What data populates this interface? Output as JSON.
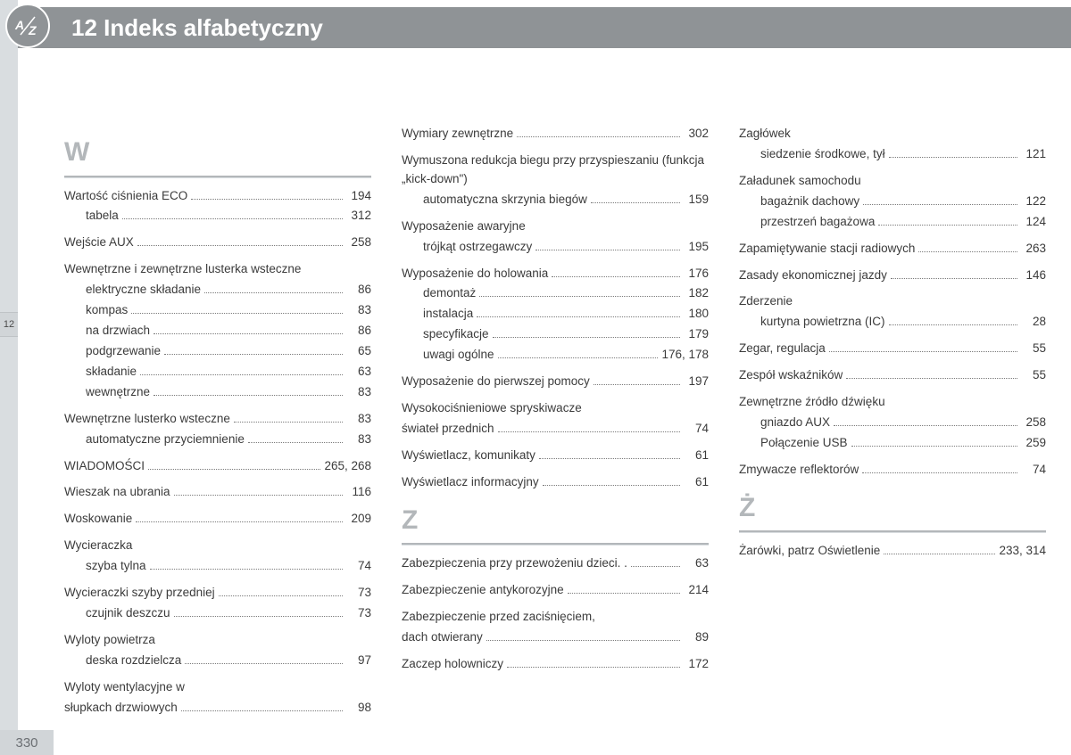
{
  "header": {
    "chapter_number": "12",
    "chapter_title": "Indeks alfabetyczny",
    "badge_text": "A-Z"
  },
  "side_tab": "12",
  "page_number": "330",
  "columns": [
    {
      "sections": [
        {
          "letter": "W",
          "groups": [
            [
              {
                "label": "Wartość ciśnienia ECO",
                "page": "194"
              },
              {
                "label": "tabela",
                "page": "312",
                "sub": true
              }
            ],
            [
              {
                "label": "Wejście AUX",
                "page": "258"
              }
            ],
            [
              {
                "label": "Wewnętrzne i zewnętrzne lusterka wsteczne",
                "nopage": true
              },
              {
                "label": "elektryczne składanie",
                "page": "86",
                "sub": true
              },
              {
                "label": "kompas",
                "page": "83",
                "sub": true
              },
              {
                "label": "na drzwiach",
                "page": "86",
                "sub": true
              },
              {
                "label": "podgrzewanie",
                "page": "65",
                "sub": true
              },
              {
                "label": "składanie",
                "page": "63",
                "sub": true
              },
              {
                "label": "wewnętrzne",
                "page": "83",
                "sub": true
              }
            ],
            [
              {
                "label": "Wewnętrzne lusterko wsteczne",
                "page": "83"
              },
              {
                "label": "automatyczne przyciemnienie",
                "page": "83",
                "sub": true
              }
            ],
            [
              {
                "label": "WIADOMOŚCI",
                "page": "265, 268"
              }
            ],
            [
              {
                "label": "Wieszak na ubrania",
                "page": "116"
              }
            ],
            [
              {
                "label": "Woskowanie",
                "page": "209"
              }
            ],
            [
              {
                "label": "Wycieraczka",
                "nopage": true
              },
              {
                "label": "szyba tylna",
                "page": "74",
                "sub": true
              }
            ],
            [
              {
                "label": "Wycieraczki szyby przedniej",
                "page": "73"
              },
              {
                "label": "czujnik deszczu",
                "page": "73",
                "sub": true
              }
            ],
            [
              {
                "label": "Wyloty powietrza",
                "nopage": true
              },
              {
                "label": "deska rozdzielcza",
                "page": "97",
                "sub": true
              }
            ],
            [
              {
                "label": "Wyloty wentylacyjne w słupkach drzwiowych",
                "page": "98",
                "wrap": true
              }
            ]
          ]
        }
      ]
    },
    {
      "sections": [
        {
          "groups": [
            [
              {
                "label": "Wymiary zewnętrzne",
                "page": "302"
              }
            ],
            [
              {
                "label": "Wymuszona redukcja biegu przy przyspieszaniu (funkcja „kick-down\")",
                "nopage": true,
                "wrap": true
              },
              {
                "label": "automatyczna skrzynia biegów",
                "page": "159",
                "sub": true
              }
            ],
            [
              {
                "label": "Wyposażenie awaryjne",
                "nopage": true
              },
              {
                "label": "trójkąt ostrzegawczy",
                "page": "195",
                "sub": true
              }
            ],
            [
              {
                "label": "Wyposażenie do holowania",
                "page": "176"
              },
              {
                "label": "demontaż",
                "page": "182",
                "sub": true
              },
              {
                "label": "instalacja",
                "page": "180",
                "sub": true
              },
              {
                "label": "specyfikacje",
                "page": "179",
                "sub": true
              },
              {
                "label": "uwagi ogólne",
                "page": "176, 178",
                "sub": true
              }
            ],
            [
              {
                "label": "Wyposażenie do pierwszej pomocy",
                "page": "197"
              }
            ],
            [
              {
                "label": "Wysokociśnieniowe spryskiwacze świateł przednich",
                "page": "74",
                "wrap": true
              }
            ],
            [
              {
                "label": "Wyświetlacz, komunikaty",
                "page": "61"
              }
            ],
            [
              {
                "label": "Wyświetlacz informacyjny",
                "page": "61"
              }
            ]
          ]
        },
        {
          "letter": "Z",
          "groups": [
            [
              {
                "label": "Zabezpieczenia przy przewożeniu dzieci. .",
                "page": "63"
              }
            ],
            [
              {
                "label": "Zabezpieczenie antykorozyjne",
                "page": "214"
              }
            ],
            [
              {
                "label": "Zabezpieczenie przed zaciśnięciem, dach otwierany",
                "page": "89",
                "wrap": true
              }
            ],
            [
              {
                "label": "Zaczep holowniczy",
                "page": "172"
              }
            ]
          ]
        }
      ]
    },
    {
      "sections": [
        {
          "groups": [
            [
              {
                "label": "Zagłówek",
                "nopage": true
              },
              {
                "label": "siedzenie środkowe, tył",
                "page": "121",
                "sub": true
              }
            ],
            [
              {
                "label": "Załadunek samochodu",
                "nopage": true
              },
              {
                "label": "bagażnik dachowy",
                "page": "122",
                "sub": true
              },
              {
                "label": "przestrzeń bagażowa",
                "page": "124",
                "sub": true
              }
            ],
            [
              {
                "label": "Zapamiętywanie stacji radiowych",
                "page": "263"
              }
            ],
            [
              {
                "label": "Zasady ekonomicznej jazdy",
                "page": "146"
              }
            ],
            [
              {
                "label": "Zderzenie",
                "nopage": true
              },
              {
                "label": "kurtyna powietrzna (IC)",
                "page": "28",
                "sub": true
              }
            ],
            [
              {
                "label": "Zegar, regulacja",
                "page": "55"
              }
            ],
            [
              {
                "label": "Zespół wskaźników",
                "page": "55"
              }
            ],
            [
              {
                "label": "Zewnętrzne źródło dźwięku",
                "nopage": true
              },
              {
                "label": "gniazdo AUX",
                "page": "258",
                "sub": true
              },
              {
                "label": "Połączenie USB",
                "page": "259",
                "sub": true
              }
            ],
            [
              {
                "label": "Zmywacze reflektorów",
                "page": "74"
              }
            ]
          ]
        },
        {
          "letter": "Ż",
          "groups": [
            [
              {
                "label": "Żarówki, patrz Oświetlenie",
                "page": "233, 314"
              }
            ]
          ]
        }
      ]
    }
  ]
}
